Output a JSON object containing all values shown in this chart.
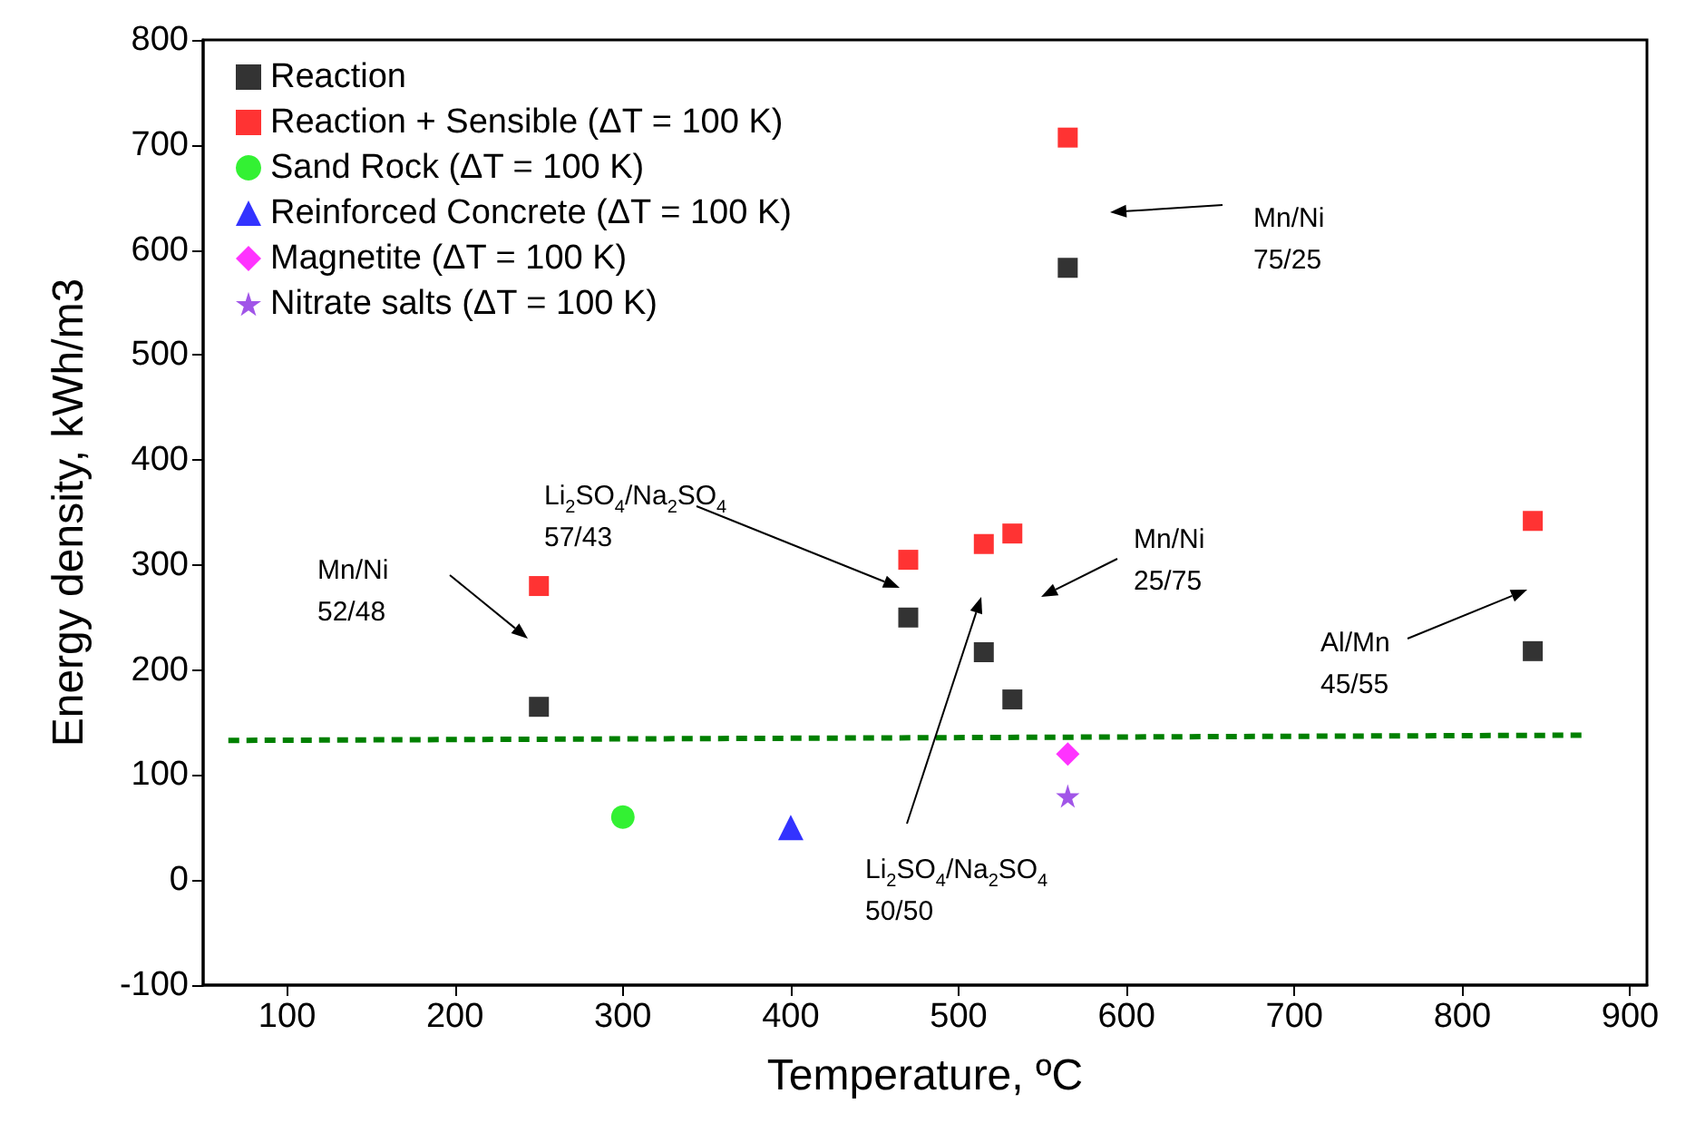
{
  "chart_data": {
    "type": "scatter",
    "xlabel": "Temperature, ºC",
    "ylabel": "Energy density, kWh/m3",
    "xlim": [
      50,
      910
    ],
    "xticks": [
      100,
      200,
      300,
      400,
      500,
      600,
      700,
      800,
      900
    ],
    "ylim": [
      -100,
      800
    ],
    "yticks": [
      -100,
      0,
      100,
      200,
      300,
      400,
      500,
      600,
      700,
      800
    ],
    "grid": false,
    "legend": "top left",
    "series": [
      {
        "name": "Reaction",
        "color": "#000000",
        "marker": "square",
        "x": [
          250,
          470,
          515,
          532,
          565,
          842
        ],
        "values": [
          165,
          250,
          217,
          172,
          583,
          218
        ]
      },
      {
        "name": "Reaction + Sensible (ΔT = 100 K)",
        "color": "#ff0000",
        "marker": "square",
        "x": [
          250,
          470,
          515,
          532,
          565,
          842
        ],
        "values": [
          280,
          305,
          320,
          330,
          707,
          342
        ]
      },
      {
        "name": "Sand Rock (ΔT = 100 K)",
        "color": "#00ee00",
        "marker": "circle",
        "x": [
          300
        ],
        "values": [
          60
        ]
      },
      {
        "name": "Reinforced Concrete (ΔT = 100 K)",
        "color": "#0000ff",
        "marker": "triangle",
        "x": [
          400
        ],
        "values": [
          50
        ]
      },
      {
        "name": "Magnetite (ΔT = 100 K)",
        "color": "#ff00ff",
        "marker": "diamond",
        "x": [
          565
        ],
        "values": [
          120
        ]
      },
      {
        "name": "Nitrate salts (ΔT = 100 K)",
        "color": "#8a2be2",
        "marker": "star",
        "x": [
          565
        ],
        "values": [
          80
        ]
      },
      {
        "type": "line",
        "color": "#008000",
        "marker": "none",
        "line_style": "dashed",
        "x": [
          65,
          875
        ],
        "values": [
          133,
          138
        ]
      }
    ],
    "annotations": [
      "Mn/Ni\n52/48",
      "Li$_{2}$SO$_{4}$/Na$_{2}$SO$_{4}$\n57/43",
      "Li$_{2}$SO$_{4}$/Na$_{2}$SO$_{4}$\n50/50",
      "Mn/Ni\n25/75",
      "Al/Mn\n45/55",
      "Mn/Ni\n75/25"
    ]
  }
}
